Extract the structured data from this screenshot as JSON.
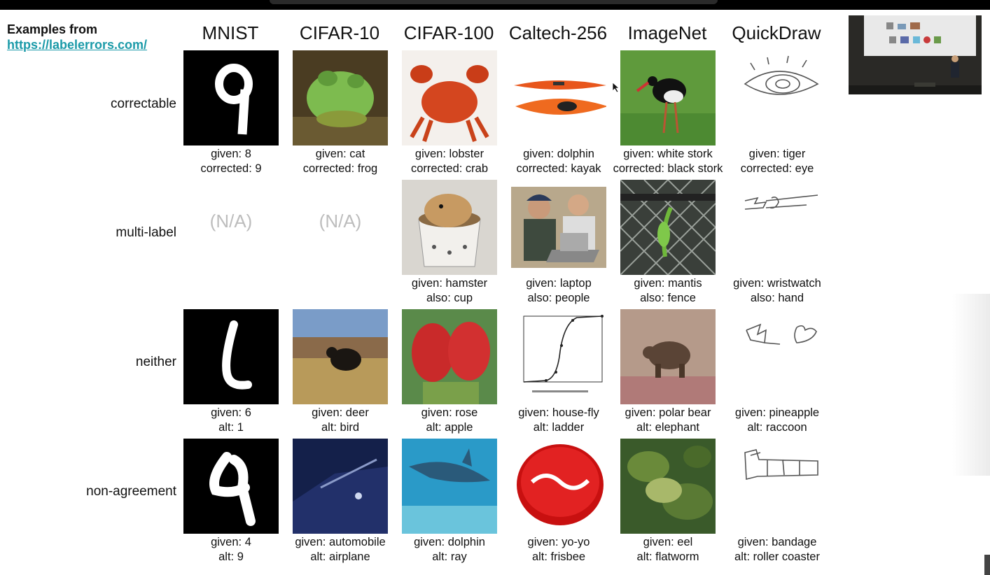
{
  "header": {
    "title": "Examples from",
    "link": "https://labelerrors.com/"
  },
  "columns": [
    "MNIST",
    "CIFAR-10",
    "CIFAR-100",
    "Caltech-256",
    "ImageNet",
    "QuickDraw"
  ],
  "rows": [
    {
      "label": "correctable",
      "cells": [
        {
          "line1": "given: 8",
          "line2": "corrected: 9"
        },
        {
          "line1": "given: cat",
          "line2": "corrected: frog"
        },
        {
          "line1": "given: lobster",
          "line2": "corrected: crab"
        },
        {
          "line1": "given: dolphin",
          "line2": "corrected: kayak"
        },
        {
          "line1": "given: white stork",
          "line2": "corrected: black stork"
        },
        {
          "line1": "given: tiger",
          "line2": "corrected: eye"
        }
      ]
    },
    {
      "label": "multi-label",
      "cells": [
        {
          "na": "(N/A)"
        },
        {
          "na": "(N/A)"
        },
        {
          "line1": "given: hamster",
          "line2": "also: cup"
        },
        {
          "line1": "given: laptop",
          "line2": "also: people"
        },
        {
          "line1": "given: mantis",
          "line2": "also: fence"
        },
        {
          "line1": "given: wristwatch",
          "line2": "also: hand"
        }
      ]
    },
    {
      "label": "neither",
      "cells": [
        {
          "line1": "given: 6",
          "line2": "alt: 1"
        },
        {
          "line1": "given: deer",
          "line2": "alt: bird"
        },
        {
          "line1": "given: rose",
          "line2": "alt: apple"
        },
        {
          "line1": "given: house-fly",
          "line2": "alt: ladder"
        },
        {
          "line1": "given: polar bear",
          "line2": "alt: elephant"
        },
        {
          "line1": "given: pineapple",
          "line2": "alt: raccoon"
        }
      ]
    },
    {
      "label": "non-agreement",
      "cells": [
        {
          "line1": "given: 4",
          "line2": "alt: 9"
        },
        {
          "line1": "given: automobile",
          "line2": "alt: airplane"
        },
        {
          "line1": "given: dolphin",
          "line2": "alt: ray"
        },
        {
          "line1": "given: yo-yo",
          "line2": "alt: frisbee"
        },
        {
          "line1": "given: eel",
          "line2": "alt: flatworm"
        },
        {
          "line1": "given: bandage",
          "line2": "alt: roller coaster"
        }
      ]
    }
  ],
  "colors": {
    "link": "#1a9aa8",
    "na": "#bdbdbd",
    "background": "#ffffff"
  }
}
